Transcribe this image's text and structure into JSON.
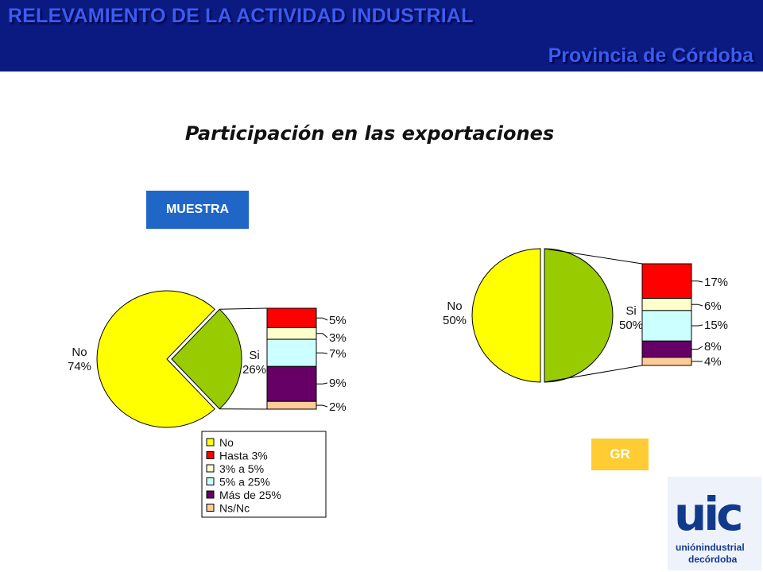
{
  "header": {
    "title": "RELEVAMIENTO DE LA ACTIVIDAD INDUSTRIAL",
    "subtitle": "Provincia de Córdoba"
  },
  "slide_title": "Participación en las exportaciones",
  "tags": {
    "left": "MUESTRA",
    "right": "GR"
  },
  "colors": {
    "header_bg": "#0b1a80",
    "header_text": "#3a5cf0",
    "no": "#ffff00",
    "si": "#99cc00",
    "hasta_3": "#ff0000",
    "3_a_5": "#ffffcc",
    "5_a_25": "#ccffff",
    "mas_de_25": "#660066",
    "ns_nc": "#ffcc99"
  },
  "legend": {
    "items": [
      {
        "label": "No",
        "color": "#ffff00"
      },
      {
        "label": "Hasta 3%",
        "color": "#ff0000"
      },
      {
        "label": "3% a 5%",
        "color": "#ffffcc"
      },
      {
        "label": "5% a 25%",
        "color": "#ccffff"
      },
      {
        "label": "Más de 25%",
        "color": "#660066"
      },
      {
        "label": "Ns/Nc",
        "color": "#ffcc99"
      }
    ]
  },
  "chart_data": [
    {
      "type": "pie",
      "tag": "MUESTRA",
      "slices": [
        {
          "name": "No",
          "value": 74,
          "label": "No\n74%"
        },
        {
          "name": "Si",
          "value": 26,
          "label": "Si\n26%"
        }
      ],
      "breakdown_of": "Si",
      "breakdown": [
        {
          "name": "Hasta 3%",
          "value": 5,
          "label": "5%"
        },
        {
          "name": "3% a 5%",
          "value": 3,
          "label": "3%"
        },
        {
          "name": "5% a 25%",
          "value": 7,
          "label": "7%"
        },
        {
          "name": "Más de 25%",
          "value": 9,
          "label": "9%"
        },
        {
          "name": "Ns/Nc",
          "value": 2,
          "label": "2%"
        }
      ],
      "legend_position": "bottom"
    },
    {
      "type": "pie",
      "tag": "GR",
      "slices": [
        {
          "name": "No",
          "value": 50,
          "label": "No\n50%"
        },
        {
          "name": "Si",
          "value": 50,
          "label": "Si\n50%"
        }
      ],
      "breakdown_of": "Si",
      "breakdown": [
        {
          "name": "Hasta 3%",
          "value": 17,
          "label": "17%"
        },
        {
          "name": "3% a 5%",
          "value": 6,
          "label": "6%"
        },
        {
          "name": "5% a 25%",
          "value": 15,
          "label": "15%"
        },
        {
          "name": "Más de 25%",
          "value": 8,
          "label": "8%"
        },
        {
          "name": "Ns/Nc",
          "value": 4,
          "label": "4%"
        }
      ]
    }
  ],
  "logo": {
    "mark": "uic",
    "line1": "uniónindustrial",
    "line2": "decórdoba"
  }
}
